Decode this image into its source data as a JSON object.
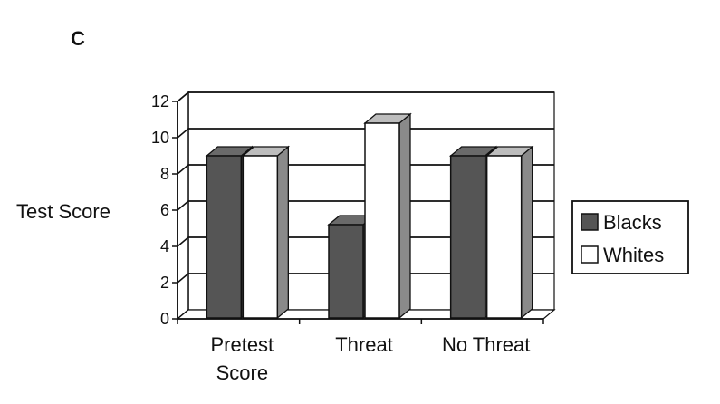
{
  "panel_label": "C",
  "chart_data": {
    "type": "bar",
    "categories": [
      [
        "Pretest",
        "Score"
      ],
      [
        "Threat"
      ],
      [
        "No Threat"
      ]
    ],
    "series": [
      {
        "name": "Blacks",
        "values": [
          9.0,
          5.2,
          9.0
        ],
        "color": "#555555"
      },
      {
        "name": "Whites",
        "values": [
          9.0,
          10.8,
          9.0
        ],
        "color": "#ffffff"
      }
    ],
    "xlabel": "",
    "ylabel": "Test Score",
    "ylim": [
      0,
      12
    ],
    "yticks": [
      0,
      2,
      4,
      6,
      8,
      10,
      12
    ],
    "grid": true,
    "three_d": true,
    "legend_position": "right"
  }
}
